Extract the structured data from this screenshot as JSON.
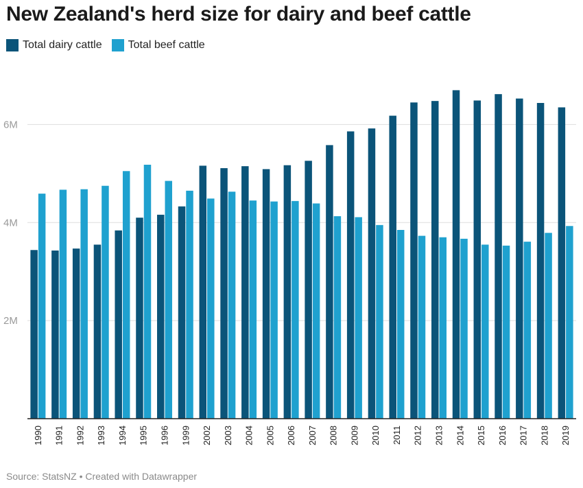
{
  "title": "New Zealand's herd size for dairy and beef cattle",
  "source": "Source: StatsNZ • Created with Datawrapper",
  "colors": {
    "dairy": "#0b5479",
    "beef": "#1fa1cf"
  },
  "chart_data": {
    "type": "bar",
    "title": "New Zealand's herd size for dairy and beef cattle",
    "xlabel": "",
    "ylabel": "",
    "ylim": [
      0,
      7000000
    ],
    "yticks": [
      {
        "value": 2000000,
        "label": "2M"
      },
      {
        "value": 4000000,
        "label": "4M"
      },
      {
        "value": 6000000,
        "label": "6M"
      }
    ],
    "grid": true,
    "legend_position": "top-left",
    "categories": [
      "1990",
      "1991",
      "1992",
      "1993",
      "1994",
      "1995",
      "1996",
      "1999",
      "2002",
      "2003",
      "2004",
      "2005",
      "2006",
      "2007",
      "2008",
      "2009",
      "2010",
      "2011",
      "2012",
      "2013",
      "2014",
      "2015",
      "2016",
      "2017",
      "2018",
      "2019"
    ],
    "series": [
      {
        "name": "Total dairy cattle",
        "values": [
          3440000,
          3430000,
          3470000,
          3550000,
          3840000,
          4100000,
          4160000,
          4330000,
          5160000,
          5110000,
          5150000,
          5090000,
          5170000,
          5260000,
          5580000,
          5860000,
          5920000,
          6180000,
          6450000,
          6480000,
          6700000,
          6490000,
          6620000,
          6530000,
          6440000,
          6350000
        ]
      },
      {
        "name": "Total beef cattle",
        "values": [
          4590000,
          4670000,
          4680000,
          4750000,
          5050000,
          5180000,
          4850000,
          4650000,
          4490000,
          4630000,
          4450000,
          4430000,
          4440000,
          4390000,
          4130000,
          4110000,
          3950000,
          3850000,
          3730000,
          3700000,
          3670000,
          3550000,
          3530000,
          3610000,
          3790000,
          3930000
        ]
      }
    ]
  }
}
